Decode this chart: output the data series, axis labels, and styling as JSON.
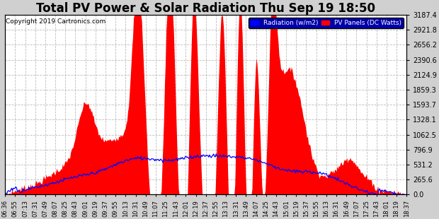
{
  "title": "Total PV Power & Solar Radiation Thu Sep 19 18:50",
  "copyright": "Copyright 2019 Cartronics.com",
  "legend_radiation": "Radiation (w/m2)",
  "legend_pv": "PV Panels (DC Watts)",
  "ymax": 3187.4,
  "yticks": [
    0.0,
    265.6,
    531.2,
    796.9,
    1062.5,
    1328.1,
    1593.7,
    1859.3,
    2124.9,
    2390.6,
    2656.2,
    2921.8,
    3187.4
  ],
  "plot_bg": "#ffffff",
  "fig_bg": "#d0d0d0",
  "pv_color": "#ff0000",
  "radiation_color": "#0000ff",
  "grid_color": "#aaaaaa",
  "title_fontsize": 12,
  "xtick_labels": [
    "06:36",
    "06:55",
    "07:13",
    "07:31",
    "07:49",
    "08:07",
    "08:25",
    "08:43",
    "09:01",
    "09:19",
    "09:37",
    "09:55",
    "10:13",
    "10:31",
    "10:49",
    "11:07",
    "11:25",
    "11:43",
    "12:01",
    "12:19",
    "12:37",
    "12:55",
    "13:13",
    "13:31",
    "13:49",
    "14:07",
    "14:25",
    "14:43",
    "15:01",
    "15:19",
    "15:37",
    "15:55",
    "16:13",
    "16:31",
    "16:49",
    "17:07",
    "17:25",
    "17:43",
    "18:01",
    "18:19",
    "18:37"
  ]
}
